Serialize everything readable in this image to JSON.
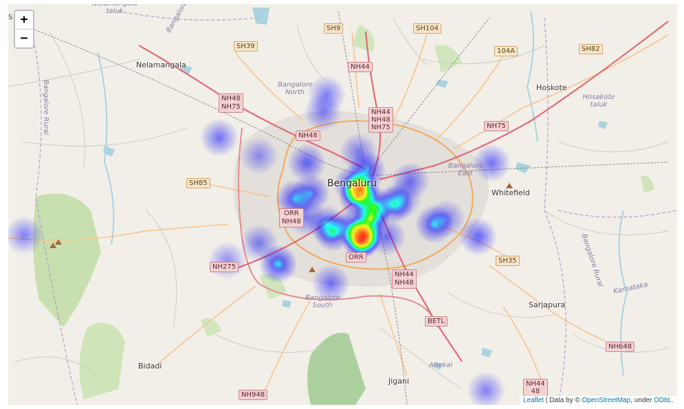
{
  "zoom": {
    "in_label": "+",
    "out_label": "−"
  },
  "attribution": {
    "leaflet": "Leaflet",
    "mid": " | Data by © ",
    "osm": "OpenStreetMap",
    "under": ", under ",
    "odbl": "ODbL",
    "end": "."
  },
  "places": {
    "nelamangala": "Nelamangala",
    "bengaluru": "Bengaluru",
    "hoskote": "Hoskote",
    "whitefield": "Whitefield",
    "sarjapura": "Sarjapura",
    "bidadi": "Bidadi",
    "jigani": "Jigani",
    "anekal": "Anekal",
    "karnataka": "Karnataka",
    "bangalore_rural_w": "Bangalore Rural",
    "bangalore_rural_e": "Bangalore Rural",
    "bangalore_north": "Bangalore North",
    "bangalore_east": "Bangalore East",
    "bangalore_south": "Bangalore South",
    "hosakote_taluk": "Hosakote taluk",
    "nelamangala_taluk": "Nelamangala taluk",
    "bangalore_top": "Bangalore",
    "edge_s": "S"
  },
  "shields": {
    "sh9": "SH9",
    "sh104": "SH104",
    "sh39": "SH39",
    "r104a": "104A",
    "sh82": "SH82",
    "nh44_n": "NH44",
    "nh48": "NH48",
    "nh75": "NH75",
    "nh44c": "NH44",
    "nh48c": "NH48",
    "nh75c": "NH75",
    "nh48w": "NH48",
    "nh75e": "NH75",
    "sh85": "SH85",
    "orr_w": "ORR",
    "nh48_orr": "NH48",
    "orr_s": "ORR",
    "nh275": "NH275",
    "nh44s": "NH44",
    "nh48s": "NH48",
    "sh35": "SH35",
    "betl": "BETL",
    "nh648": "NH648",
    "nh948": "NH948",
    "nh44se": "NH44",
    "se48": "48"
  },
  "heat_points": [
    {
      "lat": 13.025,
      "lng": 77.595,
      "weight": 0.55
    },
    {
      "lat": 12.985,
      "lng": 77.505,
      "weight": 0.55
    },
    {
      "lat": 12.993,
      "lng": 77.525,
      "weight": 0.5
    },
    {
      "lat": 12.999,
      "lng": 77.588,
      "weight": 0.85
    },
    {
      "lat": 12.988,
      "lng": 77.584,
      "weight": 0.7
    },
    {
      "lat": 13.005,
      "lng": 77.578,
      "weight": 0.6
    },
    {
      "lat": 12.975,
      "lng": 77.605,
      "weight": 0.65
    },
    {
      "lat": 12.978,
      "lng": 77.63,
      "weight": 0.6
    },
    {
      "lat": 12.958,
      "lng": 77.6,
      "weight": 0.75
    },
    {
      "lat": 12.946,
      "lng": 77.577,
      "weight": 0.55
    },
    {
      "lat": 12.934,
      "lng": 77.591,
      "weight": 1.0
    },
    {
      "lat": 12.928,
      "lng": 77.588,
      "weight": 0.95
    },
    {
      "lat": 12.939,
      "lng": 77.553,
      "weight": 0.6
    },
    {
      "lat": 12.95,
      "lng": 77.545,
      "weight": 0.45
    },
    {
      "lat": 12.933,
      "lng": 77.62,
      "weight": 0.4
    },
    {
      "lat": 12.895,
      "lng": 77.484,
      "weight": 0.6
    },
    {
      "lat": 12.868,
      "lng": 77.55,
      "weight": 0.4
    },
    {
      "lat": 12.95,
      "lng": 77.68,
      "weight": 0.55
    },
    {
      "lat": 12.958,
      "lng": 77.695,
      "weight": 0.35
    },
    {
      "lat": 12.933,
      "lng": 77.735,
      "weight": 0.45
    },
    {
      "lat": 13.035,
      "lng": 77.752,
      "weight": 0.4
    },
    {
      "lat": 12.9,
      "lng": 77.42,
      "weight": 0.3
    },
    {
      "lat": 12.924,
      "lng": 77.46,
      "weight": 0.35
    },
    {
      "lat": 13.07,
      "lng": 77.41,
      "weight": 0.4
    },
    {
      "lat": 13.045,
      "lng": 77.46,
      "weight": 0.3
    },
    {
      "lat": 13.105,
      "lng": 77.54,
      "weight": 0.35
    },
    {
      "lat": 13.13,
      "lng": 77.545,
      "weight": 0.35
    },
    {
      "lat": 12.935,
      "lng": 77.165,
      "weight": 0.35
    },
    {
      "lat": 12.72,
      "lng": 77.745,
      "weight": 0.35
    },
    {
      "lat": 12.985,
      "lng": 77.64,
      "weight": 0.35
    },
    {
      "lat": 12.96,
      "lng": 77.52,
      "weight": 0.35
    },
    {
      "lat": 13.035,
      "lng": 77.52,
      "weight": 0.45
    },
    {
      "lat": 13.05,
      "lng": 77.585,
      "weight": 0.35
    },
    {
      "lat": 13.01,
      "lng": 77.65,
      "weight": 0.4
    }
  ]
}
